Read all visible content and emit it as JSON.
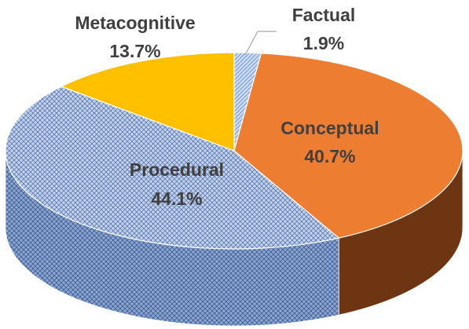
{
  "chart_data": {
    "type": "pie",
    "style": "3d",
    "slices": [
      {
        "label": "Factual",
        "value": 1.9,
        "display": "1.9%",
        "color": "#a9c4e8",
        "pattern": "hatch-light"
      },
      {
        "label": "Conceptual",
        "value": 40.7,
        "display": "40.7%",
        "color": "#ed7d31"
      },
      {
        "label": "Procedural",
        "value": 44.1,
        "display": "44.1%",
        "color": "#b7c7e2",
        "pattern": "crosshatch"
      },
      {
        "label": "Metacognitive",
        "value": 13.7,
        "display": "13.7%",
        "color": "#ffc000"
      }
    ],
    "label_color": "#404040"
  }
}
